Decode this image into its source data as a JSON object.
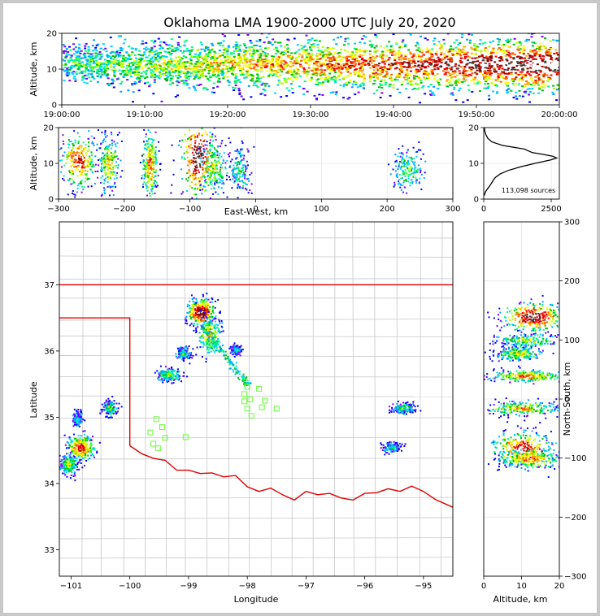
{
  "chart_data": [
    {
      "panel": "time-altitude",
      "type": "heatmap",
      "title": "Oklahoma LMA 1900-2000 UTC July 20, 2020",
      "xlabel": "",
      "ylabel": "Altitude, km",
      "xlim_minutes": [
        0,
        60
      ],
      "ylim": [
        0,
        20
      ],
      "x_ticks": [
        0,
        10,
        20,
        30,
        40,
        50,
        60
      ],
      "x_tick_labels": [
        "19:00:00",
        "19:10:00",
        "19:20:00",
        "19:30:00",
        "19:40:00",
        "19:50:00",
        "20:00:00"
      ],
      "y_ticks": [
        0,
        10,
        20
      ],
      "y_tick_labels": [
        "0",
        "10",
        "20"
      ],
      "density_band": {
        "center_km": 11.5,
        "spread_km": 4.5,
        "intensity_start": 0.3,
        "intensity_end": 1.0
      }
    },
    {
      "panel": "east-west-altitude",
      "type": "heatmap",
      "xlabel": "East-West, km",
      "ylabel": "Altitude, km",
      "xlim": [
        -300,
        300
      ],
      "ylim": [
        0,
        20
      ],
      "x_ticks": [
        -300,
        -200,
        -100,
        0,
        100,
        200,
        300
      ],
      "x_tick_labels": [
        "−300",
        "−200",
        "−100",
        "0",
        "100",
        "200",
        "300"
      ],
      "y_ticks": [
        0,
        10,
        20
      ],
      "y_tick_labels": [
        "0",
        "10",
        "20"
      ],
      "clusters": [
        {
          "x": -270,
          "z": 11,
          "sx": 14,
          "sz": 4,
          "level": 0.8
        },
        {
          "x": -225,
          "z": 10,
          "sx": 8,
          "sz": 4,
          "level": 0.6
        },
        {
          "x": -162,
          "z": 10,
          "sx": 6,
          "sz": 5,
          "level": 0.7
        },
        {
          "x": -88,
          "z": 12,
          "sx": 14,
          "sz": 6,
          "level": 1.0
        },
        {
          "x": -65,
          "z": 9,
          "sx": 12,
          "sz": 4,
          "level": 0.5
        },
        {
          "x": -25,
          "z": 8,
          "sx": 8,
          "sz": 3,
          "level": 0.35
        },
        {
          "x": 230,
          "z": 8,
          "sx": 12,
          "sz": 3,
          "level": 0.45
        }
      ]
    },
    {
      "panel": "altitude-histogram",
      "type": "line",
      "xlim": [
        0,
        2800
      ],
      "ylim": [
        0,
        20
      ],
      "x_ticks": [
        0,
        2500
      ],
      "x_tick_labels": [
        "0",
        "2500"
      ],
      "y_ticks": [
        0,
        10,
        20
      ],
      "y_tick_labels": [
        "0",
        "10",
        "20"
      ],
      "annotation": "113,098 sources",
      "altitude_km": [
        1,
        2,
        3,
        4,
        5,
        6,
        7,
        8,
        9,
        10,
        11,
        11.5,
        12,
        12.5,
        13,
        14,
        15,
        16,
        17,
        18,
        19,
        20
      ],
      "counts": [
        20,
        60,
        150,
        250,
        330,
        420,
        600,
        900,
        1350,
        1900,
        2500,
        2700,
        2550,
        2200,
        1800,
        1500,
        700,
        300,
        150,
        80,
        40,
        20
      ]
    },
    {
      "panel": "plan-view-map",
      "type": "scatter",
      "xlabel": "Longitude",
      "ylabel": "Latitude",
      "xlim": [
        -101.2,
        -94.5
      ],
      "ylim": [
        32.6,
        37.95
      ],
      "x_ticks": [
        -101,
        -100,
        -99,
        -98,
        -97,
        -96,
        -95
      ],
      "x_tick_labels": [
        "−101",
        "−100",
        "−99",
        "−98",
        "−97",
        "−96",
        "−95"
      ],
      "y_ticks": [
        33,
        34,
        35,
        36,
        37
      ],
      "y_tick_labels": [
        "33",
        "34",
        "35",
        "36",
        "37"
      ],
      "clusters": [
        {
          "lon": -98.8,
          "lat": 36.6,
          "slon": 0.12,
          "slat": 0.1,
          "level": 1.0
        },
        {
          "lon": -98.65,
          "lat": 36.25,
          "slon": 0.1,
          "slat": 0.15,
          "level": 0.6
        },
        {
          "lon": -100.85,
          "lat": 34.55,
          "slon": 0.12,
          "slat": 0.1,
          "level": 0.8
        },
        {
          "lon": -101.05,
          "lat": 34.3,
          "slon": 0.08,
          "slat": 0.08,
          "level": 0.5
        },
        {
          "lon": -99.35,
          "lat": 35.65,
          "slon": 0.1,
          "slat": 0.05,
          "level": 0.45
        },
        {
          "lon": -100.35,
          "lat": 35.15,
          "slon": 0.06,
          "slat": 0.06,
          "level": 0.4
        },
        {
          "lon": -95.35,
          "lat": 35.15,
          "slon": 0.1,
          "slat": 0.04,
          "level": 0.4
        },
        {
          "lon": -95.55,
          "lat": 34.55,
          "slon": 0.08,
          "slat": 0.04,
          "level": 0.3
        },
        {
          "lon": -100.9,
          "lat": 34.98,
          "slon": 0.04,
          "slat": 0.06,
          "level": 0.3
        },
        {
          "lon": -99.1,
          "lat": 35.98,
          "slon": 0.06,
          "slat": 0.05,
          "level": 0.35
        },
        {
          "lon": -98.2,
          "lat": 36.02,
          "slon": 0.04,
          "slat": 0.04,
          "level": 0.3
        }
      ],
      "stations": [
        {
          "lon": -99.55,
          "lat": 34.97
        },
        {
          "lon": -99.45,
          "lat": 34.85
        },
        {
          "lon": -99.65,
          "lat": 34.77
        },
        {
          "lon": -99.4,
          "lat": 34.69
        },
        {
          "lon": -99.6,
          "lat": 34.6
        },
        {
          "lon": -99.52,
          "lat": 34.53
        },
        {
          "lon": -99.05,
          "lat": 34.7
        },
        {
          "lon": -98.0,
          "lat": 35.46
        },
        {
          "lon": -98.05,
          "lat": 35.35
        },
        {
          "lon": -97.8,
          "lat": 35.43
        },
        {
          "lon": -98.05,
          "lat": 35.24
        },
        {
          "lon": -97.95,
          "lat": 35.27
        },
        {
          "lon": -97.7,
          "lat": 35.25
        },
        {
          "lon": -98.0,
          "lat": 35.13
        },
        {
          "lon": -97.75,
          "lat": 35.15
        },
        {
          "lon": -97.5,
          "lat": 35.13
        },
        {
          "lon": -97.93,
          "lat": 35.02
        }
      ]
    },
    {
      "panel": "altitude-north-south",
      "type": "heatmap",
      "xlabel": "Altitude, km",
      "ylabel": "North-South, km",
      "xlim": [
        0,
        20
      ],
      "ylim": [
        -300,
        300
      ],
      "x_ticks": [
        0,
        10,
        20
      ],
      "x_tick_labels": [
        "0",
        "10",
        "20"
      ],
      "y_ticks": [
        -300,
        -200,
        -100,
        0,
        100,
        200,
        300
      ],
      "y_tick_labels": [
        "−300",
        "−200",
        "−100",
        "0",
        "100",
        "200",
        "300"
      ],
      "clusters": [
        {
          "z": 13,
          "y": 140,
          "sz": 4,
          "sy": 12,
          "level": 1.0
        },
        {
          "z": 11,
          "y": 100,
          "sz": 4,
          "sy": 6,
          "level": 0.5
        },
        {
          "z": 9,
          "y": 78,
          "sz": 3,
          "sy": 6,
          "level": 0.55
        },
        {
          "z": 11,
          "y": 40,
          "sz": 5,
          "sy": 5,
          "level": 0.7
        },
        {
          "z": 10,
          "y": -15,
          "sz": 5,
          "sy": 6,
          "level": 0.6
        },
        {
          "z": 10,
          "y": -82,
          "sz": 4,
          "sy": 14,
          "level": 0.85
        },
        {
          "z": 12,
          "y": -100,
          "sz": 4,
          "sy": 8,
          "level": 0.7
        }
      ]
    }
  ]
}
